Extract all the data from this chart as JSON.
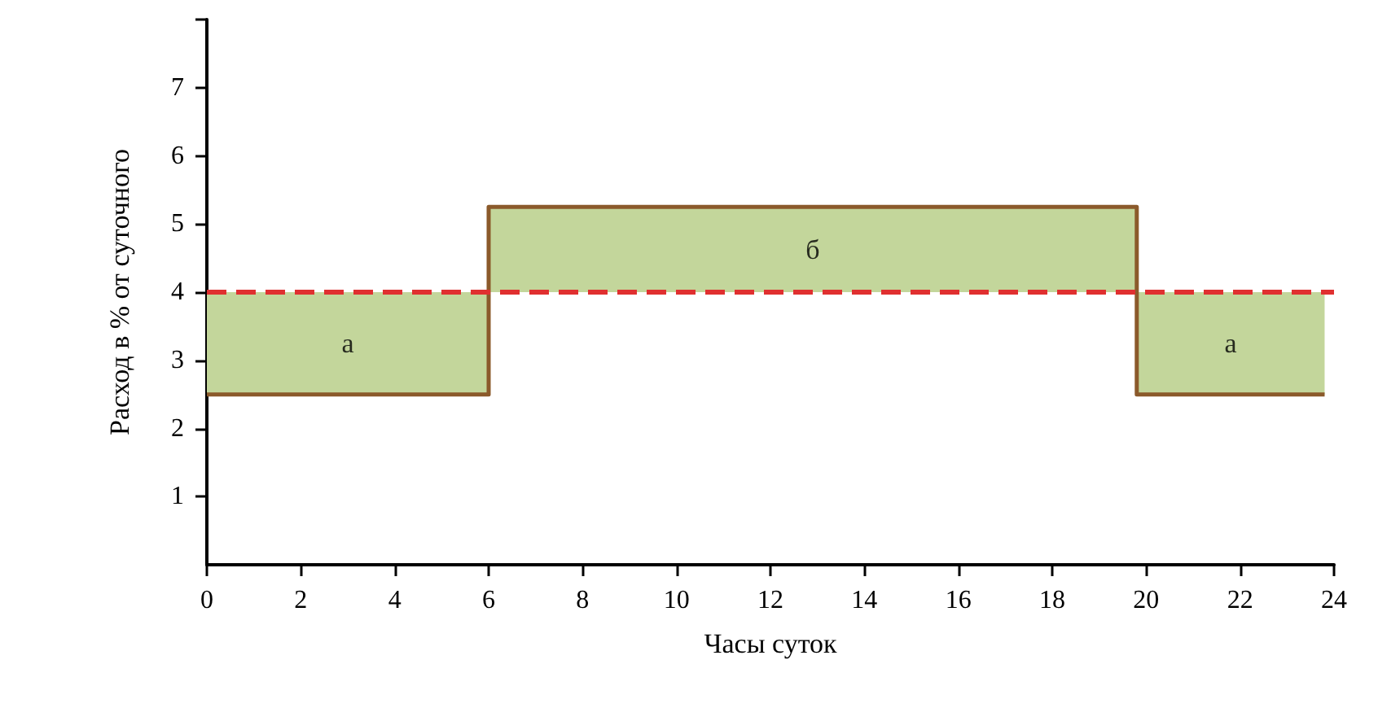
{
  "chart_data": {
    "type": "step",
    "xlabel": "Часы суток",
    "ylabel": "Расход в % от суточного",
    "xlim": [
      0,
      24
    ],
    "xticks": [
      0,
      2,
      4,
      6,
      8,
      10,
      12,
      14,
      16,
      18,
      20,
      22,
      24
    ],
    "ylim": [
      0,
      8
    ],
    "yticks": [
      1,
      2,
      3,
      4,
      5,
      6,
      7,
      {
        "value": 8,
        "label": null
      }
    ],
    "series": [
      {
        "type": "step",
        "color": "#8b5a2b",
        "x": [
          0,
          6,
          19.8,
          23.8
        ],
        "values": [
          2.5,
          5.25,
          2.5,
          2.5
        ],
        "lower": [
          2.5,
          4,
          2.5,
          2.5
        ],
        "upper": [
          4,
          5.25,
          4,
          4
        ]
      }
    ],
    "ref_lines": [
      {
        "axis": "y",
        "value": 4,
        "color": "#e03030",
        "line_style": "dashed"
      }
    ],
    "annotations": [
      "а",
      "б",
      "а"
    ],
    "grid": false,
    "marker": "none",
    "line_style": "solid"
  }
}
